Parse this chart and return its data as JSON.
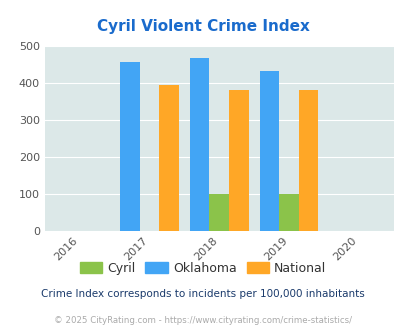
{
  "title": "Cyril Violent Crime Index",
  "years": [
    2016,
    2017,
    2018,
    2019,
    2020
  ],
  "bar_years": [
    2017,
    2018,
    2019
  ],
  "cyril": [
    0,
    100,
    100
  ],
  "oklahoma": [
    458,
    467,
    432
  ],
  "national": [
    394,
    381,
    381
  ],
  "cyril_color": "#8bc34a",
  "oklahoma_color": "#42a5f5",
  "national_color": "#ffa726",
  "bg_color": "#dce8e8",
  "title_color": "#1a6bcc",
  "ylim": [
    0,
    500
  ],
  "yticks": [
    0,
    100,
    200,
    300,
    400,
    500
  ],
  "note": "Crime Index corresponds to incidents per 100,000 inhabitants",
  "footer": "© 2025 CityRating.com - https://www.cityrating.com/crime-statistics/",
  "bar_width": 0.28
}
